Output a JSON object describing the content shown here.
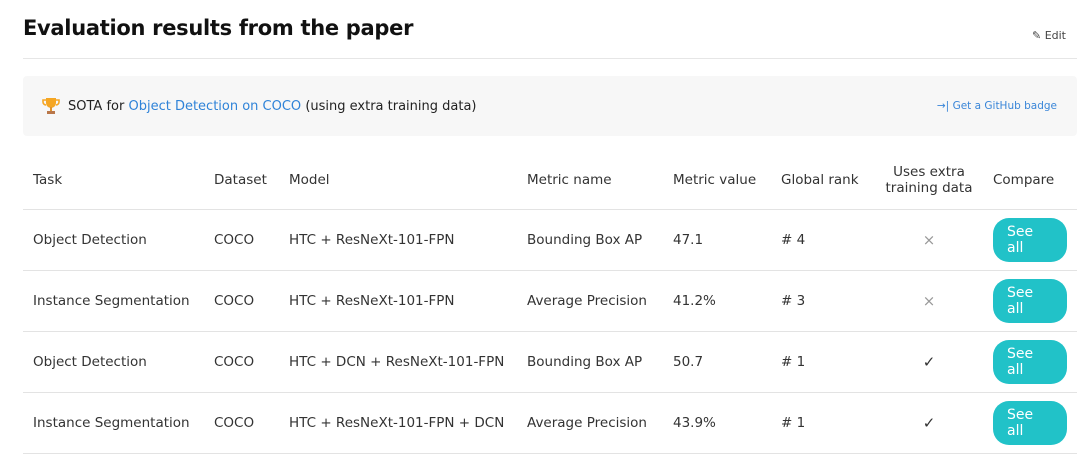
{
  "header": {
    "title": "Evaluation results from the paper",
    "edit_label": "Edit"
  },
  "banner": {
    "prefix": "SOTA for",
    "link": "Object Detection on COCO",
    "suffix": "(using extra training data)",
    "badge_label": "Get a GitHub badge"
  },
  "colors": {
    "accent": "#21c2c8",
    "link": "#2f83d8"
  },
  "table": {
    "columns": [
      "Task",
      "Dataset",
      "Model",
      "Metric name",
      "Metric value",
      "Global rank",
      "Uses extra training data",
      "Compare"
    ],
    "rows": [
      {
        "task": "Object Detection",
        "dataset": "COCO",
        "model": "HTC + ResNeXt-101-FPN",
        "metric": "Bounding Box AP",
        "value": "47.1",
        "rank": "# 4",
        "extra": "×",
        "compare": "See all"
      },
      {
        "task": "Instance Segmentation",
        "dataset": "COCO",
        "model": "HTC + ResNeXt-101-FPN",
        "metric": "Average Precision",
        "value": "41.2%",
        "rank": "# 3",
        "extra": "×",
        "compare": "See all"
      },
      {
        "task": "Object Detection",
        "dataset": "COCO",
        "model": "HTC + DCN + ResNeXt-101-FPN",
        "metric": "Bounding Box AP",
        "value": "50.7",
        "rank": "# 1",
        "extra": "✓",
        "compare": "See all"
      },
      {
        "task": "Instance Segmentation",
        "dataset": "COCO",
        "model": "HTC + ResNeXt-101-FPN + DCN",
        "metric": "Average Precision",
        "value": "43.9%",
        "rank": "# 1",
        "extra": "✓",
        "compare": "See all"
      }
    ]
  }
}
